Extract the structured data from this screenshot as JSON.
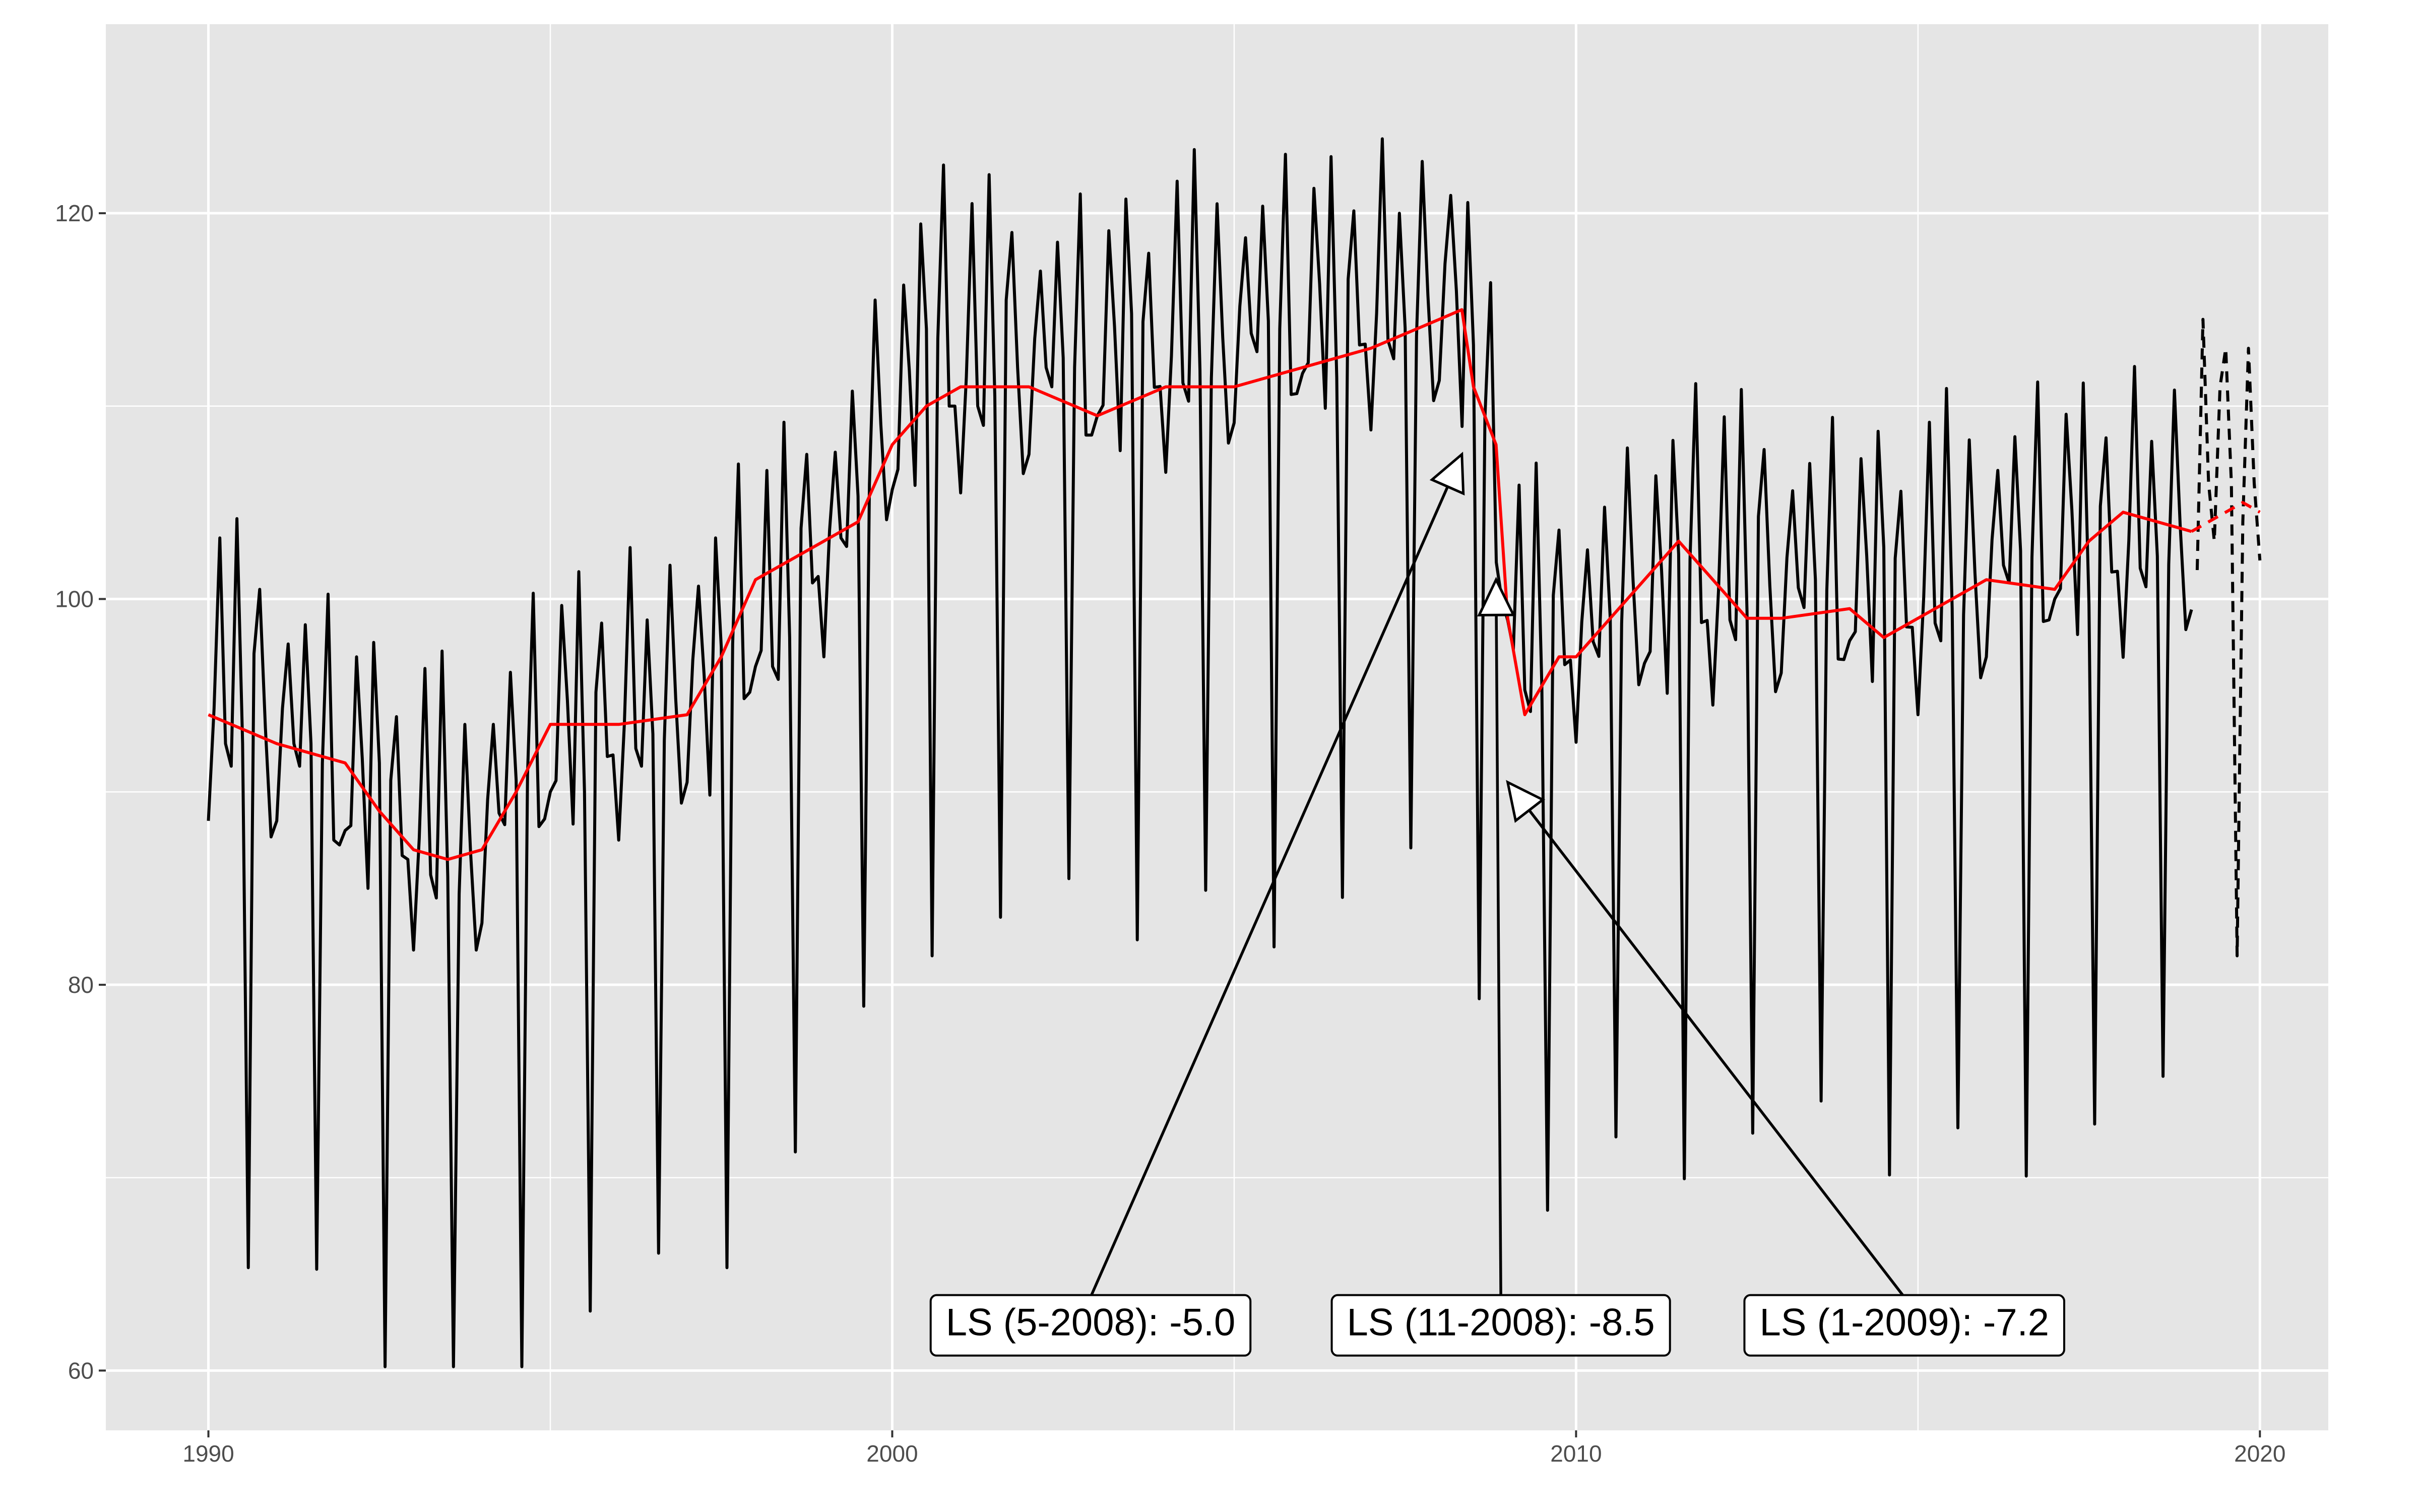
{
  "chart_data": {
    "type": "line",
    "title": "",
    "xlabel": "",
    "ylabel": "",
    "xlim": [
      1988.5,
      2021.0
    ],
    "ylim": [
      56.9,
      129.8
    ],
    "x_ticks": [
      "1990",
      "2000",
      "2010",
      "2020"
    ],
    "x_minor_ticks": [
      1995,
      2005,
      2015
    ],
    "y_ticks": [
      "60",
      "80",
      "100",
      "120"
    ],
    "y_minor_ticks": [
      70,
      90,
      110
    ],
    "grid": true,
    "background": "#e5e5e5",
    "series": [
      {
        "role": "actual",
        "color": "#000000",
        "style": "solid",
        "start": 1990.0,
        "step_years": 0.0833333,
        "yearly_profile": [
          91,
          95,
          102,
          95,
          92,
          103,
          95,
          66,
          96,
          103,
          94,
          92
        ]
      },
      {
        "role": "forecast",
        "color": "#000000",
        "style": "dashed",
        "points": [
          [
            2019.083,
            101.5
          ],
          [
            2019.167,
            114.5
          ],
          [
            2019.25,
            106
          ],
          [
            2019.333,
            103
          ],
          [
            2019.417,
            111
          ],
          [
            2019.5,
            113
          ],
          [
            2019.583,
            106
          ],
          [
            2019.667,
            81.5
          ],
          [
            2019.75,
            104
          ],
          [
            2019.833,
            113
          ],
          [
            2019.917,
            106
          ],
          [
            2020.0,
            102
          ]
        ]
      },
      {
        "role": "trend",
        "color": "#ff0000",
        "style": "solid",
        "points": [
          [
            1990,
            94
          ],
          [
            1991,
            92.5
          ],
          [
            1992,
            91.5
          ],
          [
            1992.5,
            89
          ],
          [
            1993,
            87
          ],
          [
            1993.5,
            86.5
          ],
          [
            1994,
            87
          ],
          [
            1994.5,
            90
          ],
          [
            1995,
            93.5
          ],
          [
            1996,
            93.5
          ],
          [
            1997,
            94
          ],
          [
            1997.5,
            97
          ],
          [
            1998,
            101
          ],
          [
            1999,
            103
          ],
          [
            1999.5,
            104
          ],
          [
            2000,
            108
          ],
          [
            2000.5,
            110
          ],
          [
            2001,
            111
          ],
          [
            2002,
            111
          ],
          [
            2003,
            109.5
          ],
          [
            2004,
            111
          ],
          [
            2005,
            111
          ],
          [
            2006,
            112
          ],
          [
            2007,
            113
          ],
          [
            2008,
            114.5
          ],
          [
            2008.33,
            115
          ],
          [
            2008.5,
            111
          ],
          [
            2008.83,
            108
          ],
          [
            2009.0,
            99
          ],
          [
            2009.25,
            94
          ],
          [
            2009.75,
            97
          ],
          [
            2010,
            97
          ],
          [
            2011,
            101
          ],
          [
            2011.5,
            103
          ],
          [
            2012,
            101
          ],
          [
            2012.5,
            99
          ],
          [
            2013,
            99
          ],
          [
            2014,
            99.5
          ],
          [
            2014.5,
            98
          ],
          [
            2015,
            99
          ],
          [
            2016,
            101
          ],
          [
            2017,
            100.5
          ],
          [
            2017.5,
            103
          ],
          [
            2018,
            104.5
          ],
          [
            2018.5,
            104
          ],
          [
            2019.0,
            103.5
          ]
        ]
      },
      {
        "role": "trend-forecast",
        "color": "#ff0000",
        "style": "dashed",
        "points": [
          [
            2019.0,
            103.5
          ],
          [
            2019.25,
            104
          ],
          [
            2019.5,
            104.5
          ],
          [
            2019.75,
            105
          ],
          [
            2020.0,
            104.5
          ]
        ]
      }
    ],
    "annotations": [
      {
        "text": "LS (5-2008): -5.0",
        "x": 2008.33,
        "y": 107.5,
        "label_x": 2002.9,
        "label_y": 62.5
      },
      {
        "text": "LS (11-2008): -8.5",
        "x": 2008.83,
        "y": 101.0,
        "label_x": 2008.9,
        "label_y": 62.5
      },
      {
        "text": "LS (1-2009): -7.2",
        "x": 2009.0,
        "y": 90.5,
        "label_x": 2014.8,
        "label_y": 62.5
      }
    ]
  }
}
